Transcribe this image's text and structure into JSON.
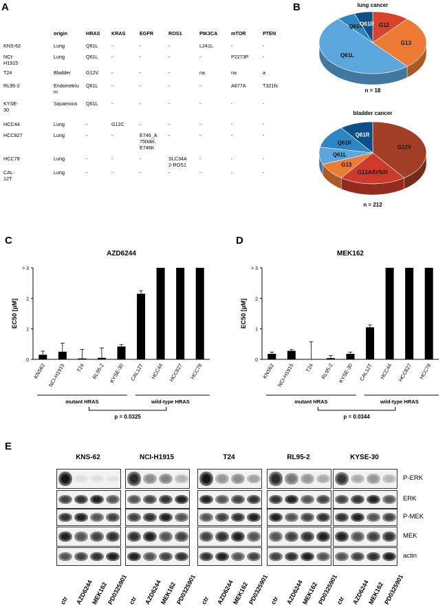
{
  "panels": {
    "A": "A",
    "B": "B",
    "C": "C",
    "D": "D",
    "E": "E"
  },
  "table": {
    "headers": [
      "origin",
      "HRAS",
      "KRAS",
      "EGFR",
      "ROS1",
      "PIK3CA",
      "mTOR",
      "PTEN"
    ],
    "rows": [
      {
        "name": "KNS-62",
        "cells": [
          "Lung",
          "Q61L",
          "-",
          "-",
          "-",
          "L241L",
          "-",
          "-"
        ]
      },
      {
        "name": "NCI-\nH1915",
        "cells": [
          "Lung",
          "Q61L",
          "-",
          "-",
          "-",
          "-",
          "P2273P",
          "-"
        ]
      },
      {
        "name": "T24",
        "cells": [
          "Bladder",
          "G12V",
          "-",
          "-",
          "-",
          "na",
          "na",
          "a"
        ]
      },
      {
        "name": "RL95-2",
        "cells": [
          "Endometriu\nm",
          "Q61L",
          "-",
          "-",
          "-",
          "-",
          "A677A",
          "T321fs"
        ]
      },
      {
        "name": "KYSE-\n30",
        "cells": [
          "Squamous",
          "Q61L",
          "-",
          "-",
          "-",
          "-",
          "-",
          "-"
        ]
      },
      {
        "name": "HCC44",
        "cells": [
          "Lung",
          "-",
          "G12C",
          "-",
          "-",
          "-",
          "-",
          "-"
        ]
      },
      {
        "name": "HCC827",
        "cells": [
          "Lung",
          "-",
          "-",
          "E746_A\n750del,\nE746K",
          "-",
          "-",
          "-",
          "-"
        ]
      },
      {
        "name": "HCC78",
        "cells": [
          "Lung",
          "-",
          "-",
          "-",
          "SLC34A\n2-ROS1",
          "-",
          "-",
          "-"
        ]
      },
      {
        "name": "CAL-\n12T",
        "cells": [
          "Lung",
          "-",
          "-",
          "-",
          "-",
          "-",
          "-",
          "-"
        ]
      }
    ]
  },
  "pies": [
    {
      "title": "lung cancer",
      "n": "n = 18",
      "slices": [
        {
          "label": "G12",
          "value": 2,
          "color": "#d8432b"
        },
        {
          "label": "G13",
          "value": 5,
          "color": "#ee7b33"
        },
        {
          "label": "Q61L",
          "value": 9,
          "color": "#5ba6dd"
        },
        {
          "label": "Q61K",
          "value": 1,
          "color": "#2d86c4"
        },
        {
          "label": "Q61R",
          "value": 1,
          "color": "#0e4f86"
        }
      ]
    },
    {
      "title": "bladder cancer",
      "n": "n = 212",
      "slices": [
        {
          "label": "G12V",
          "value": 40,
          "color": "#a33e26"
        },
        {
          "label": "G12A/D/S/R",
          "value": 20,
          "color": "#cf3a2b"
        },
        {
          "label": "G13",
          "value": 9,
          "color": "#ee7b33"
        },
        {
          "label": "Q61L",
          "value": 9,
          "color": "#5ba6dd"
        },
        {
          "label": "Q61K",
          "value": 12,
          "color": "#2d86c4"
        },
        {
          "label": "Q61R",
          "value": 10,
          "color": "#0e4f86"
        }
      ]
    }
  ],
  "chart_data": [
    {
      "type": "bar",
      "title": "AZD6244",
      "ylabel": "EC50 [µM]",
      "ylim": [
        0,
        3
      ],
      "yticks": [
        "0",
        "1",
        "2",
        "> 3"
      ],
      "categories": [
        "KNS62",
        "NCI-H1915",
        "T24",
        "RL95-2",
        "KYSE-30",
        "CAL12T",
        "HCC44",
        "HCC827",
        "HCC78"
      ],
      "values": [
        0.15,
        0.25,
        0.03,
        0.05,
        0.42,
        2.15,
        3.0,
        3.0,
        3.0
      ],
      "errors": [
        0.12,
        0.28,
        0.3,
        0.32,
        0.06,
        0.1,
        0,
        0,
        0
      ],
      "groups": [
        "mutant HRAS",
        "wild-type HRAS"
      ],
      "pvalue": "p = 0.0325"
    },
    {
      "type": "bar",
      "title": "MEK162",
      "ylabel": "EC50 [µM]",
      "ylim": [
        0,
        3
      ],
      "yticks": [
        "0",
        "1",
        "2",
        "> 3"
      ],
      "categories": [
        "KNS62",
        "NCI-H1915",
        "T24",
        "RL95-2",
        "KYSE-30",
        "CAL12T",
        "HCC44",
        "HCC827",
        "HCC78"
      ],
      "values": [
        0.18,
        0.28,
        0.0,
        0.04,
        0.18,
        1.05,
        3.0,
        3.0,
        3.0
      ],
      "errors": [
        0.06,
        0.04,
        0.58,
        0.08,
        0.06,
        0.08,
        0,
        0,
        0
      ],
      "groups": [
        "mutant HRAS",
        "wild-type HRAS"
      ],
      "pvalue": "p = 0.0344"
    }
  ],
  "western": {
    "cell_lines": [
      "KNS-62",
      "NCI-H1915",
      "T24",
      "RL95-2",
      "KYSE-30"
    ],
    "rows": [
      "P-ERK",
      "ERK",
      "P-MEK",
      "MEK",
      "actin"
    ],
    "lanes": [
      "ctr",
      "AZD6244",
      "MEK162",
      "PD0325901"
    ]
  }
}
